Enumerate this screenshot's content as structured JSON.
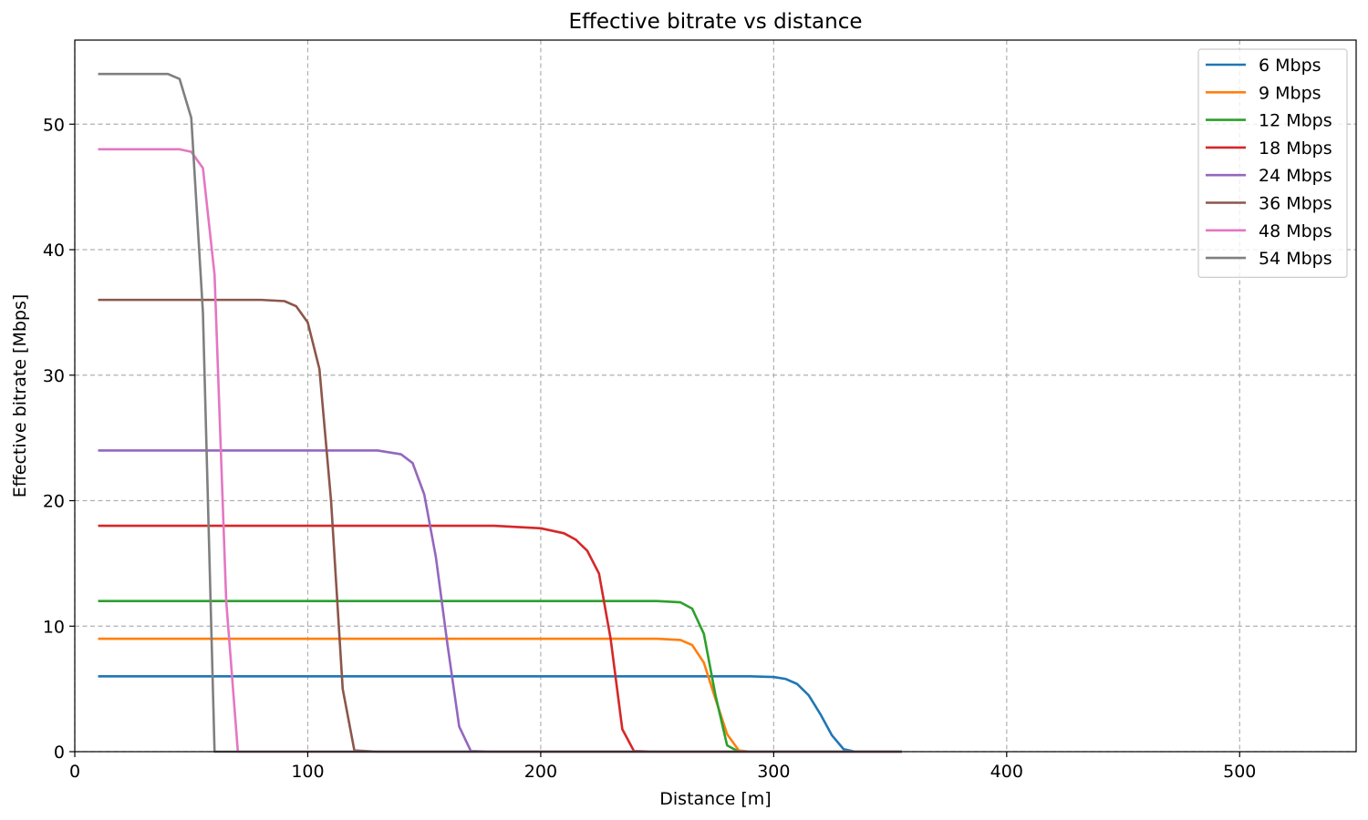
{
  "chart_data": {
    "type": "line",
    "title": "Effective bitrate vs distance",
    "xlabel": "Distance [m]",
    "ylabel": "Effective bitrate [Mbps]",
    "xlim": [
      0,
      550
    ],
    "ylim": [
      0,
      56.7
    ],
    "xticks": [
      0,
      100,
      200,
      300,
      400,
      500
    ],
    "yticks": [
      0,
      10,
      20,
      30,
      40,
      50
    ],
    "grid": true,
    "legend_position": "upper right",
    "x": [
      10,
      40,
      45,
      50,
      55,
      60,
      65,
      70,
      80,
      90,
      95,
      100,
      105,
      110,
      115,
      120,
      130,
      140,
      145,
      150,
      155,
      160,
      165,
      170,
      180,
      200,
      210,
      215,
      220,
      225,
      230,
      235,
      240,
      250,
      260,
      265,
      270,
      275,
      280,
      285,
      290,
      300,
      305,
      310,
      315,
      320,
      325,
      330,
      335,
      355
    ],
    "series": [
      {
        "name": "6 Mbps",
        "color": "#1f77b4",
        "values": [
          6,
          6,
          6,
          6,
          6,
          6,
          6,
          6,
          6,
          6,
          6,
          6,
          6,
          6,
          6,
          6,
          6,
          6,
          6,
          6,
          6,
          6,
          6,
          6,
          6,
          6,
          6,
          6,
          6,
          6,
          6,
          6,
          6,
          6,
          6,
          6,
          6,
          6,
          6,
          6,
          6,
          5.95,
          5.8,
          5.4,
          4.5,
          3.0,
          1.3,
          0.2,
          0,
          0
        ]
      },
      {
        "name": "9 Mbps",
        "color": "#ff7f0e",
        "values": [
          9,
          9,
          9,
          9,
          9,
          9,
          9,
          9,
          9,
          9,
          9,
          9,
          9,
          9,
          9,
          9,
          9,
          9,
          9,
          9,
          9,
          9,
          9,
          9,
          9,
          9,
          9,
          9,
          9,
          9,
          9,
          9,
          9,
          9,
          8.9,
          8.5,
          7.1,
          4.2,
          1.4,
          0.1,
          0,
          0,
          0,
          0,
          0,
          0,
          0,
          0,
          0,
          0
        ]
      },
      {
        "name": "12 Mbps",
        "color": "#2ca02c",
        "values": [
          12,
          12,
          12,
          12,
          12,
          12,
          12,
          12,
          12,
          12,
          12,
          12,
          12,
          12,
          12,
          12,
          12,
          12,
          12,
          12,
          12,
          12,
          12,
          12,
          12,
          12,
          12,
          12,
          12,
          12,
          12,
          12,
          12,
          12,
          11.9,
          11.4,
          9.4,
          4.5,
          0.5,
          0,
          0,
          0,
          0,
          0,
          0,
          0,
          0,
          0,
          0,
          0
        ]
      },
      {
        "name": "18 Mbps",
        "color": "#d62728",
        "values": [
          18,
          18,
          18,
          18,
          18,
          18,
          18,
          18,
          18,
          18,
          18,
          18,
          18,
          18,
          18,
          18,
          18,
          18,
          18,
          18,
          18,
          18,
          18,
          18,
          18,
          17.8,
          17.4,
          16.9,
          16.0,
          14.2,
          9.0,
          1.8,
          0.05,
          0,
          0,
          0,
          0,
          0,
          0,
          0,
          0,
          0,
          0,
          0,
          0,
          0,
          0,
          0,
          0,
          0
        ]
      },
      {
        "name": "24 Mbps",
        "color": "#9467bd",
        "values": [
          24,
          24,
          24,
          24,
          24,
          24,
          24,
          24,
          24,
          24,
          24,
          24,
          24,
          24,
          24,
          24,
          24,
          23.7,
          23.0,
          20.5,
          15.5,
          8.5,
          2.0,
          0.05,
          0,
          0,
          0,
          0,
          0,
          0,
          0,
          0,
          0,
          0,
          0,
          0,
          0,
          0,
          0,
          0,
          0,
          0,
          0,
          0,
          0,
          0,
          0,
          0,
          0,
          0
        ]
      },
      {
        "name": "36 Mbps",
        "color": "#8c564b",
        "values": [
          36,
          36,
          36,
          36,
          36,
          36,
          36,
          36,
          36,
          35.9,
          35.5,
          34.2,
          30.5,
          20.0,
          5.0,
          0.1,
          0,
          0,
          0,
          0,
          0,
          0,
          0,
          0,
          0,
          0,
          0,
          0,
          0,
          0,
          0,
          0,
          0,
          0,
          0,
          0,
          0,
          0,
          0,
          0,
          0,
          0,
          0,
          0,
          0,
          0,
          0,
          0,
          0,
          0
        ]
      },
      {
        "name": "48 Mbps",
        "color": "#e377c2",
        "values": [
          48,
          48,
          48,
          47.8,
          46.5,
          38.0,
          12.0,
          0,
          0,
          0,
          0,
          0,
          0,
          0,
          0,
          0,
          0,
          0,
          0,
          0,
          0,
          0,
          0,
          0,
          0,
          0,
          0,
          0,
          0,
          0,
          0,
          0,
          0,
          0,
          0,
          0,
          0,
          0,
          0,
          0,
          0,
          0,
          0,
          0,
          0,
          0,
          0,
          0,
          0,
          0
        ]
      },
      {
        "name": "54 Mbps",
        "color": "#7f7f7f",
        "values": [
          54,
          54,
          53.6,
          50.5,
          35.0,
          0,
          0,
          0,
          0,
          0,
          0,
          0,
          0,
          0,
          0,
          0,
          0,
          0,
          0,
          0,
          0,
          0,
          0,
          0,
          0,
          0,
          0,
          0,
          0,
          0,
          0,
          0,
          0,
          0,
          0,
          0,
          0,
          0,
          0,
          0,
          0,
          0,
          0,
          0,
          0,
          0,
          0,
          0,
          0,
          0
        ]
      }
    ]
  }
}
